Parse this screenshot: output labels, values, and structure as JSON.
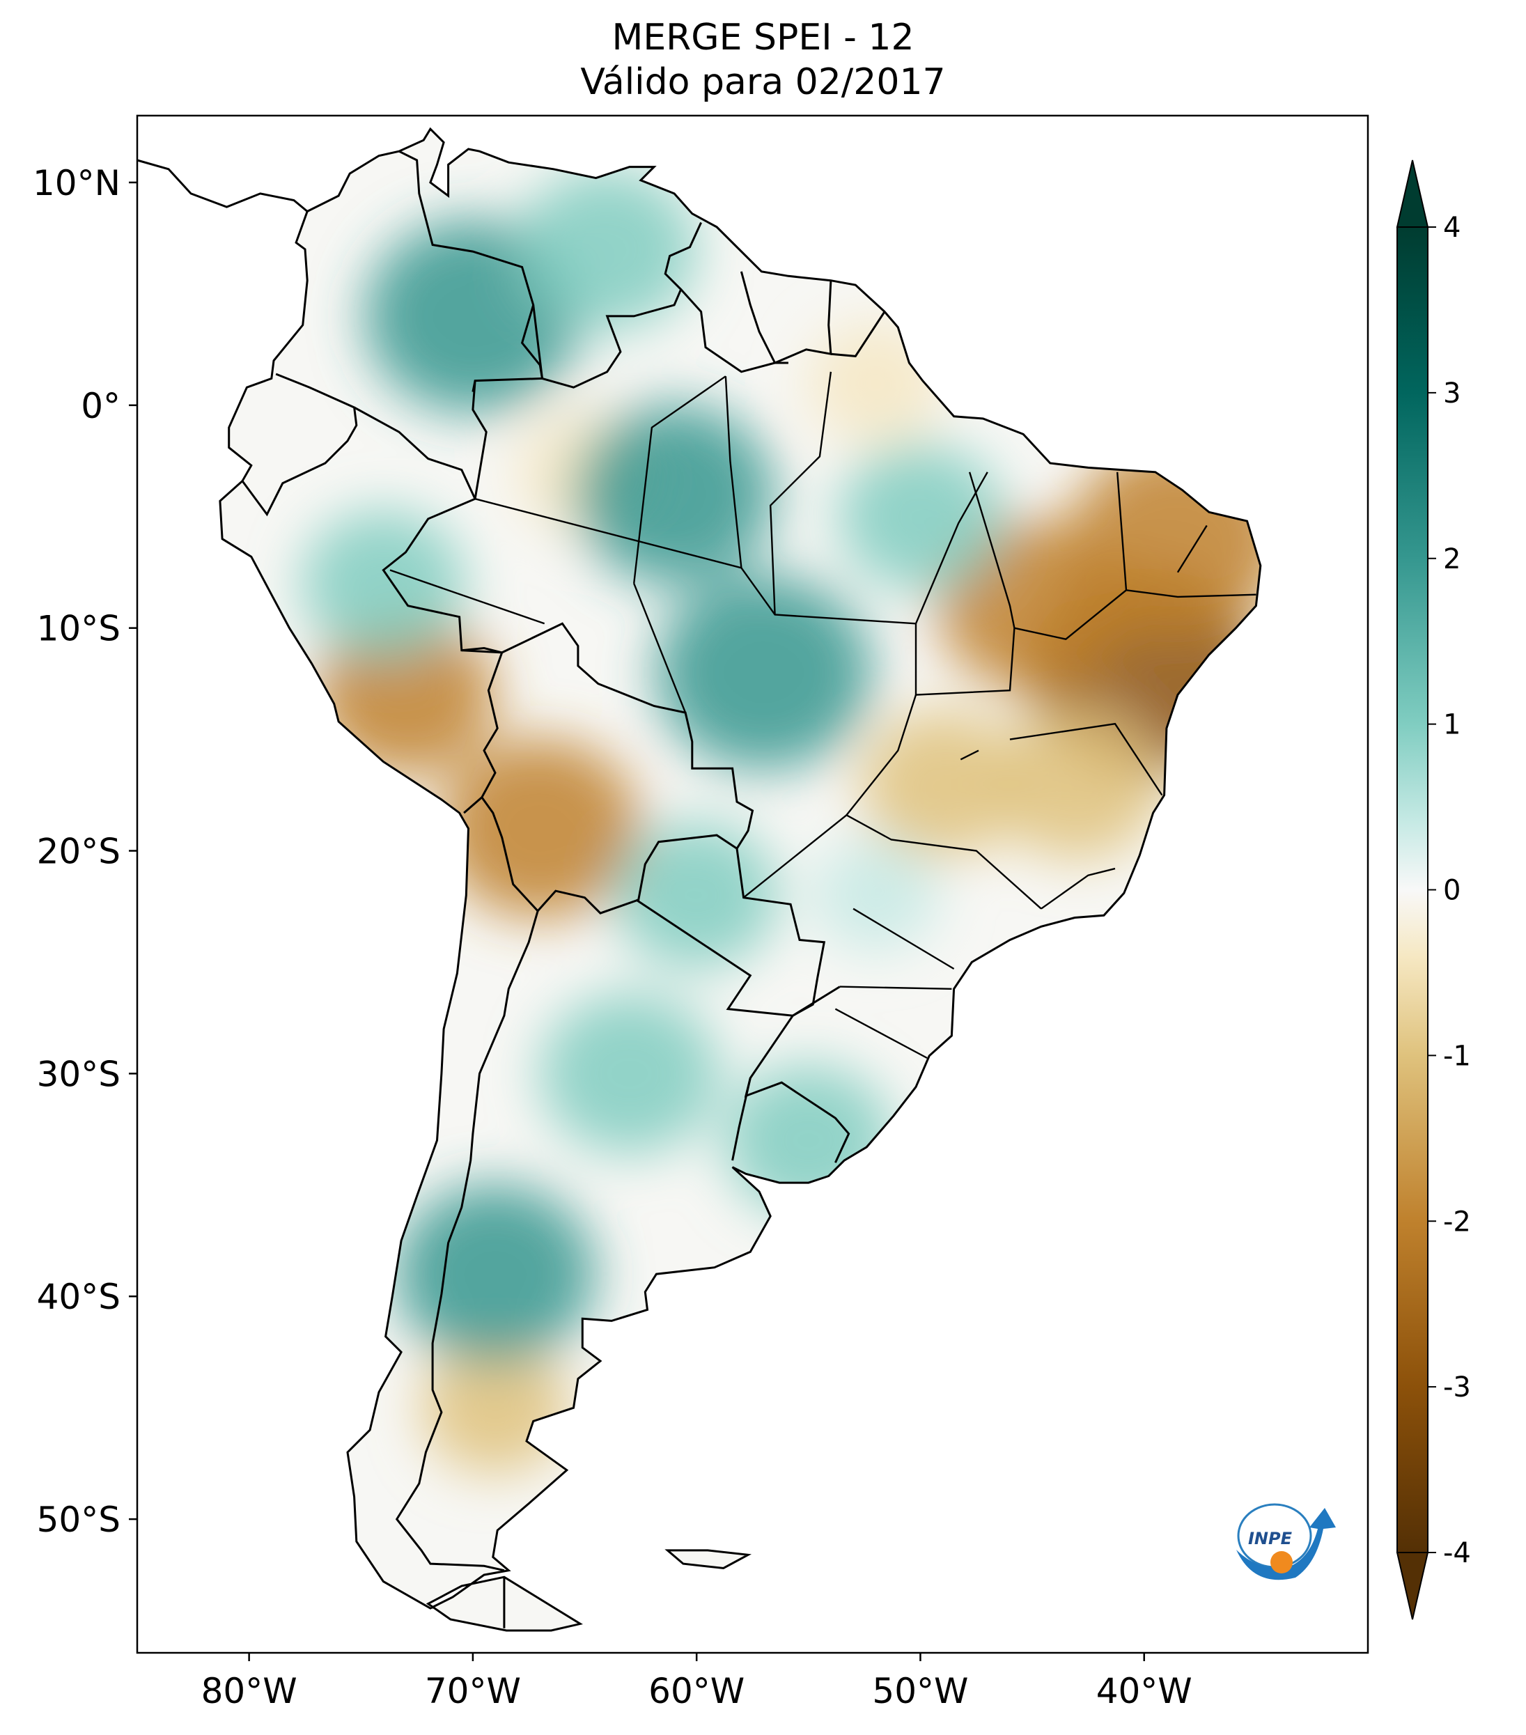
{
  "title": {
    "line1": "MERGE   SPEI - 12",
    "line2": "Válido para 02/2017"
  },
  "map": {
    "extent_lon": [
      -85,
      -30
    ],
    "extent_lat": [
      -56,
      13
    ],
    "lon_ticks": [
      {
        "value": -80,
        "label": "80°W"
      },
      {
        "value": -70,
        "label": "70°W"
      },
      {
        "value": -60,
        "label": "60°W"
      },
      {
        "value": -50,
        "label": "50°W"
      },
      {
        "value": -40,
        "label": "40°W"
      }
    ],
    "lat_ticks": [
      {
        "value": 10,
        "label": "10°N"
      },
      {
        "value": 0,
        "label": "0°"
      },
      {
        "value": -10,
        "label": "10°S"
      },
      {
        "value": -20,
        "label": "20°S"
      },
      {
        "value": -30,
        "label": "30°S"
      },
      {
        "value": -40,
        "label": "40°S"
      },
      {
        "value": -50,
        "label": "50°S"
      }
    ],
    "logo_text": "INPE"
  },
  "colorbar": {
    "min": -4,
    "max": 4,
    "extend": "both",
    "tick_labels": [
      "-4",
      "-3",
      "-2",
      "-1",
      "0",
      "1",
      "2",
      "3",
      "4"
    ],
    "colors": {
      "dry_extreme": "#543005",
      "dry_strong": "#8c510a",
      "dry_moderate": "#bf812d",
      "dry_mild": "#dfc27d",
      "dry_slight": "#f6e8c3",
      "neutral": "#f5f5f5",
      "wet_slight": "#c7eae5",
      "wet_mild": "#80cdc1",
      "wet_moderate": "#35978f",
      "wet_strong": "#01665e",
      "wet_extreme": "#003c30"
    }
  },
  "chart_data": {
    "type": "heatmap",
    "variable": "SPEI - 12",
    "regions": [
      {
        "lon": -40,
        "lat": -12,
        "value": -2.8
      },
      {
        "lon": -38.5,
        "lat": -6,
        "value": -2.5
      },
      {
        "lon": -45,
        "lat": -9,
        "value": -2.0
      },
      {
        "lon": -43,
        "lat": -17,
        "value": -1.6
      },
      {
        "lon": -49,
        "lat": -17,
        "value": -1.5
      },
      {
        "lon": -67,
        "lat": -19,
        "value": -2.2
      },
      {
        "lon": -73,
        "lat": -13,
        "value": -1.8
      },
      {
        "lon": -69,
        "lat": -45,
        "value": -1.2
      },
      {
        "lon": -65,
        "lat": -3,
        "value": -1.0
      },
      {
        "lon": -52,
        "lat": 1,
        "value": -1.0
      },
      {
        "lon": -70,
        "lat": 4,
        "value": 2.5
      },
      {
        "lon": -61,
        "lat": -4,
        "value": 2.2
      },
      {
        "lon": -57,
        "lat": -12,
        "value": 2.5
      },
      {
        "lon": -63,
        "lat": -30,
        "value": 1.8
      },
      {
        "lon": -69,
        "lat": -39,
        "value": 2.2
      },
      {
        "lon": -55,
        "lat": -33,
        "value": 1.6
      },
      {
        "lon": -60,
        "lat": -22,
        "value": 1.5
      },
      {
        "lon": -50,
        "lat": -5,
        "value": 1.5
      },
      {
        "lon": -74,
        "lat": -8,
        "value": 1.5
      },
      {
        "lon": -52,
        "lat": -22,
        "value": 0.8
      },
      {
        "lon": -64,
        "lat": 7,
        "value": 1.8
      }
    ]
  }
}
